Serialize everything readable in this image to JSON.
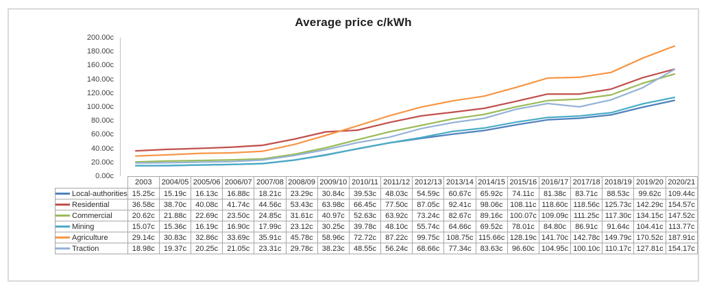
{
  "chart_data": {
    "type": "line",
    "title": "Average price c/kWh",
    "xlabel": "",
    "ylabel": "",
    "unit_suffix": "c",
    "grid": false,
    "legend_position": "data-table-left",
    "categories": [
      "2003",
      "2004/05",
      "2005/06",
      "2006/07",
      "2007/08",
      "2008/09",
      "2009/10",
      "2010/11",
      "2011/12",
      "2012/13",
      "2013/14",
      "2014/15",
      "2015/16",
      "2016/17",
      "2017/18",
      "2018/19",
      "2019/20",
      "2020/21"
    ],
    "series": [
      {
        "name": "Local-authorities",
        "color": "#4F81BD",
        "values": [
          15.25,
          15.19,
          16.13,
          16.88,
          18.21,
          23.29,
          30.84,
          39.53,
          48.03,
          54.59,
          60.67,
          65.92,
          74.11,
          81.38,
          83.71,
          88.53,
          99.62,
          109.44
        ]
      },
      {
        "name": "Residential",
        "color": "#C0504D",
        "values": [
          36.58,
          38.7,
          40.08,
          41.74,
          44.56,
          53.43,
          63.98,
          66.45,
          77.5,
          87.05,
          92.41,
          98.06,
          108.11,
          118.6,
          118.56,
          125.73,
          142.29,
          154.57
        ]
      },
      {
        "name": "Commercial",
        "color": "#9BBB59",
        "values": [
          20.62,
          21.88,
          22.69,
          23.5,
          24.85,
          31.61,
          40.97,
          52.63,
          63.92,
          73.24,
          82.67,
          89.16,
          100.07,
          109.09,
          111.25,
          117.3,
          134.15,
          147.52
        ]
      },
      {
        "name": "Mining",
        "color": "#4BACC6",
        "values": [
          15.07,
          15.36,
          16.19,
          16.9,
          17.99,
          23.12,
          30.25,
          39.78,
          48.1,
          55.74,
          64.66,
          69.52,
          78.01,
          84.8,
          86.91,
          91.64,
          104.41,
          113.77
        ]
      },
      {
        "name": "Agriculture",
        "color": "#F79646",
        "values": [
          29.14,
          30.83,
          32.86,
          33.69,
          35.91,
          45.78,
          58.96,
          72.72,
          87.22,
          99.75,
          108.75,
          115.66,
          128.19,
          141.7,
          142.78,
          149.79,
          170.52,
          187.91
        ]
      },
      {
        "name": "Traction",
        "color": "#95B3D7",
        "values": [
          18.98,
          19.37,
          20.25,
          21.05,
          23.31,
          29.78,
          38.23,
          48.55,
          56.24,
          68.66,
          77.34,
          83.63,
          96.6,
          104.95,
          100.1,
          110.17,
          127.81,
          154.17
        ]
      }
    ],
    "y_axis": {
      "min": 0,
      "max": 200,
      "step": 20,
      "tick_labels": [
        "200.00c",
        "180.00c",
        "160.00c",
        "140.00c",
        "120.00c",
        "100.00c",
        "80.00c",
        "60.00c",
        "40.00c",
        "20.00c",
        "0.00c"
      ]
    }
  }
}
